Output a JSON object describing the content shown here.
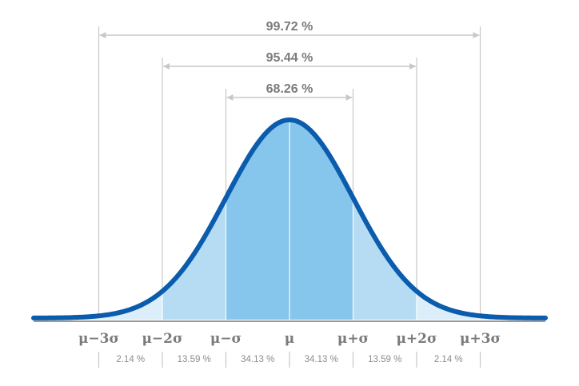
{
  "chart_data": {
    "type": "area",
    "title": "",
    "xlabel": "",
    "ylabel": "",
    "xlim": [
      -4,
      4
    ],
    "x_ticks": [
      {
        "x": -3,
        "label": "μ−3σ"
      },
      {
        "x": -2,
        "label": "μ−2σ"
      },
      {
        "x": -1,
        "label": "μ−σ"
      },
      {
        "x": 0,
        "label": "μ"
      },
      {
        "x": 1,
        "label": "μ+σ"
      },
      {
        "x": 2,
        "label": "μ+2σ"
      },
      {
        "x": 3,
        "label": "μ+3σ"
      }
    ],
    "regions": [
      {
        "from": -3,
        "to": -2,
        "label": "2.14 %",
        "value": 2.14
      },
      {
        "from": -2,
        "to": -1,
        "label": "13.59 %",
        "value": 13.59
      },
      {
        "from": -1,
        "to": 0,
        "label": "34.13 %",
        "value": 34.13
      },
      {
        "from": 0,
        "to": 1,
        "label": "34.13 %",
        "value": 34.13
      },
      {
        "from": 1,
        "to": 2,
        "label": "13.59 %",
        "value": 13.59
      },
      {
        "from": 2,
        "to": 3,
        "label": "2.14 %",
        "value": 2.14
      }
    ],
    "ranges": [
      {
        "from": -3,
        "to": 3,
        "label": "99.72 %",
        "value": 99.72
      },
      {
        "from": -2,
        "to": 2,
        "label": "95.44 %",
        "value": 95.44
      },
      {
        "from": -1,
        "to": 1,
        "label": "68.26 %",
        "value": 68.26
      }
    ],
    "colors": {
      "curve": "#0b5cad",
      "fill_inner": "#86c5ec",
      "fill_middle": "#b6dcf4",
      "fill_outer": "#dbeefa",
      "guide": "#c8c8c8",
      "text": "#7b7b7b",
      "axis": "#9a9a9a"
    }
  }
}
